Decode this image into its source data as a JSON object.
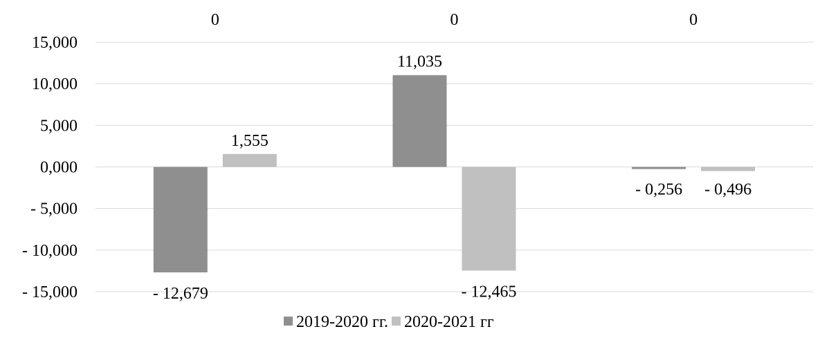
{
  "chart_data": {
    "type": "bar",
    "categories": [
      "0",
      "0",
      "0"
    ],
    "series": [
      {
        "name": "2019-2020 гг.",
        "color": "#8f8f8f",
        "values": [
          -12.679,
          11.035,
          -0.256
        ]
      },
      {
        "name": "2020-2021 гг",
        "color": "#c0c0c0",
        "values": [
          1.555,
          -12.465,
          -0.496
        ]
      }
    ],
    "data_labels": [
      [
        "- 12,679",
        "11,035",
        "- 0,256"
      ],
      [
        "1,555",
        "- 12,465",
        "- 0,496"
      ]
    ],
    "yticks": [
      "15,000",
      "10,000",
      "5,000",
      "0,000",
      "- 5,000",
      "- 10,000",
      "- 15,000"
    ],
    "ylim": [
      -15,
      15
    ],
    "category_axis_position": "top",
    "grid": true,
    "legend_position": "bottom",
    "gridline_color": "#d9d9d9",
    "title": "",
    "xlabel": "",
    "ylabel": ""
  }
}
